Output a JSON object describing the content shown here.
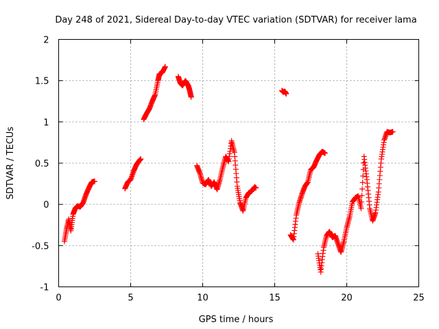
{
  "chart_data": {
    "type": "scatter",
    "title": "Day 248 of 2021, Sidereal Day-to-day VTEC variation (SDTVAR) for receiver lama",
    "xlabel": "GPS time / hours",
    "ylabel": "SDTVAR / TECUs",
    "xlim": [
      0,
      25
    ],
    "ylim": [
      -1,
      2
    ],
    "xticks": [
      0,
      5,
      10,
      15,
      20,
      25
    ],
    "yticks": [
      -1,
      -0.5,
      0,
      0.5,
      1,
      1.5,
      2
    ],
    "grid": true,
    "marker": "plus",
    "color": "#ff0000",
    "segments": [
      {
        "x": [
          0.4,
          0.55,
          0.7,
          0.85,
          1.0,
          1.15,
          1.3,
          1.5,
          1.7,
          1.9,
          2.1,
          2.3,
          2.5
        ],
        "y": [
          -0.45,
          -0.3,
          -0.18,
          -0.32,
          -0.12,
          -0.05,
          -0.02,
          -0.03,
          0.02,
          0.12,
          0.2,
          0.27,
          0.28
        ]
      },
      {
        "x": [
          4.6,
          4.8,
          5.0,
          5.2,
          5.4,
          5.6,
          5.7
        ],
        "y": [
          0.19,
          0.27,
          0.3,
          0.4,
          0.48,
          0.53,
          0.55
        ]
      },
      {
        "x": [
          5.9,
          6.1,
          6.3,
          6.5,
          6.7,
          6.9,
          7.0,
          7.2,
          7.4
        ],
        "y": [
          1.03,
          1.1,
          1.16,
          1.25,
          1.33,
          1.5,
          1.58,
          1.6,
          1.67
        ]
      },
      {
        "x": [
          8.3,
          8.45,
          8.6,
          8.8,
          9.0,
          9.1,
          9.2
        ],
        "y": [
          1.55,
          1.47,
          1.44,
          1.5,
          1.44,
          1.38,
          1.3
        ]
      },
      {
        "x": [
          9.6,
          9.8,
          10.0,
          10.2,
          10.4,
          10.6,
          10.8,
          11.0,
          11.2,
          11.4,
          11.6,
          11.8,
          12.0,
          12.2,
          12.4,
          12.6,
          12.8,
          13.0,
          13.2,
          13.4,
          13.6,
          13.7
        ],
        "y": [
          0.47,
          0.38,
          0.26,
          0.24,
          0.3,
          0.22,
          0.27,
          0.18,
          0.3,
          0.45,
          0.58,
          0.52,
          0.77,
          0.63,
          0.22,
          0.02,
          -0.08,
          0.08,
          0.14,
          0.16,
          0.21,
          0.2
        ]
      },
      {
        "x": [
          15.5,
          15.6,
          15.7,
          15.8
        ],
        "y": [
          1.38,
          1.36,
          1.37,
          1.34
        ]
      },
      {
        "x": [
          16.1,
          16.3,
          16.5,
          16.7,
          16.9,
          17.1,
          17.3,
          17.5,
          17.7,
          17.9,
          18.1,
          18.3,
          18.5
        ],
        "y": [
          -0.37,
          -0.43,
          -0.13,
          0.02,
          0.13,
          0.22,
          0.27,
          0.42,
          0.45,
          0.53,
          0.6,
          0.64,
          0.62
        ]
      },
      {
        "x": [
          18.0,
          18.2,
          18.4,
          18.6,
          18.8,
          19.0,
          19.2,
          19.4,
          19.6,
          19.8,
          20.0,
          20.2,
          20.4,
          20.6,
          20.8,
          21.0,
          21.2,
          21.4,
          21.6,
          21.8,
          22.0,
          22.2,
          22.4,
          22.6,
          22.8,
          23.0,
          23.2
        ],
        "y": [
          -0.6,
          -0.82,
          -0.52,
          -0.38,
          -0.33,
          -0.4,
          -0.38,
          -0.48,
          -0.58,
          -0.45,
          -0.28,
          -0.15,
          0.03,
          0.08,
          0.1,
          -0.05,
          0.58,
          0.3,
          -0.05,
          -0.2,
          -0.1,
          0.15,
          0.55,
          0.78,
          0.88,
          0.87,
          0.88
        ]
      }
    ]
  }
}
